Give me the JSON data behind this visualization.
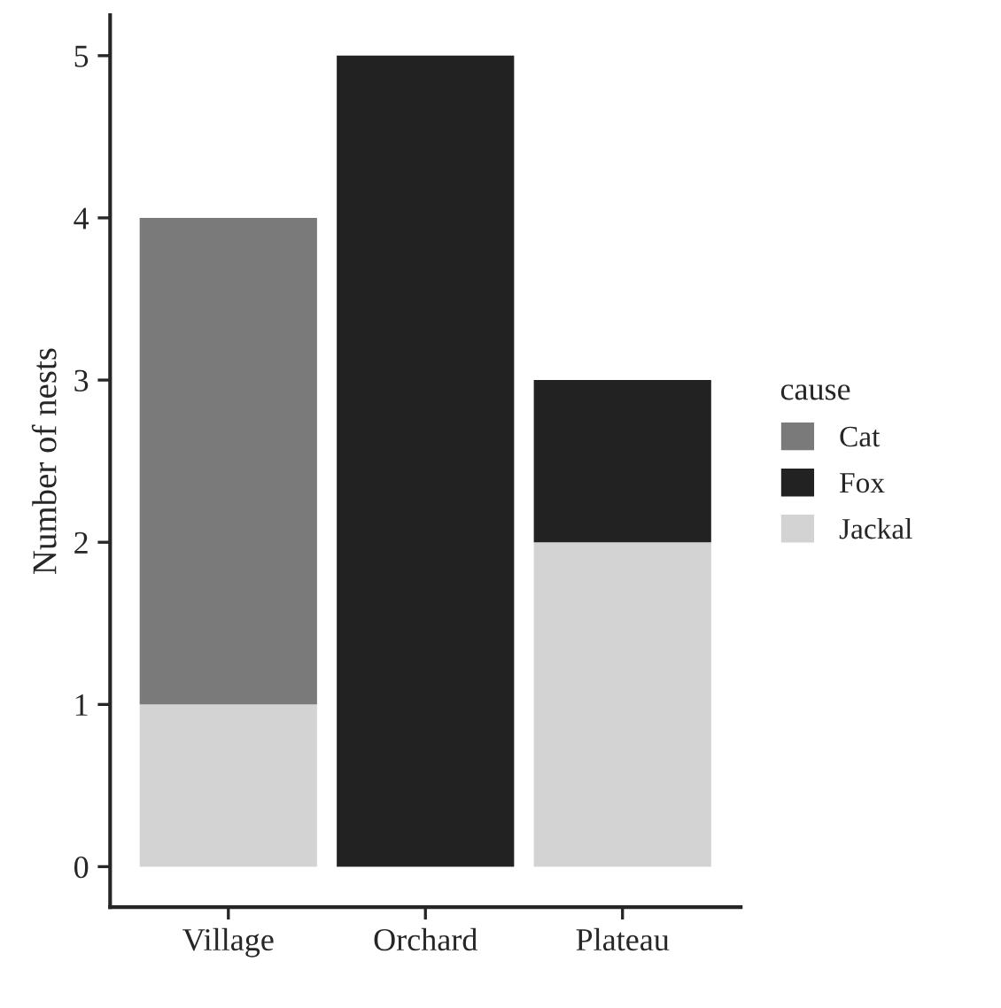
{
  "chart_data": {
    "type": "bar",
    "stacked": true,
    "ylabel": "Number of nests",
    "legend_title": "cause",
    "legend": "right",
    "grid": false,
    "categories": [
      "Village",
      "Orchard",
      "Plateau"
    ],
    "series": [
      {
        "name": "Jackal",
        "color": "#d3d3d3",
        "values": [
          1,
          0,
          2
        ]
      },
      {
        "name": "Fox",
        "color": "#222222",
        "values": [
          0,
          5,
          1
        ]
      },
      {
        "name": "Cat",
        "color": "#7a7a7a",
        "values": [
          3,
          0,
          0
        ]
      }
    ],
    "ylim": [
      -0.25,
      5.25
    ],
    "yticks": [
      0,
      1,
      2,
      3,
      4,
      5
    ]
  }
}
